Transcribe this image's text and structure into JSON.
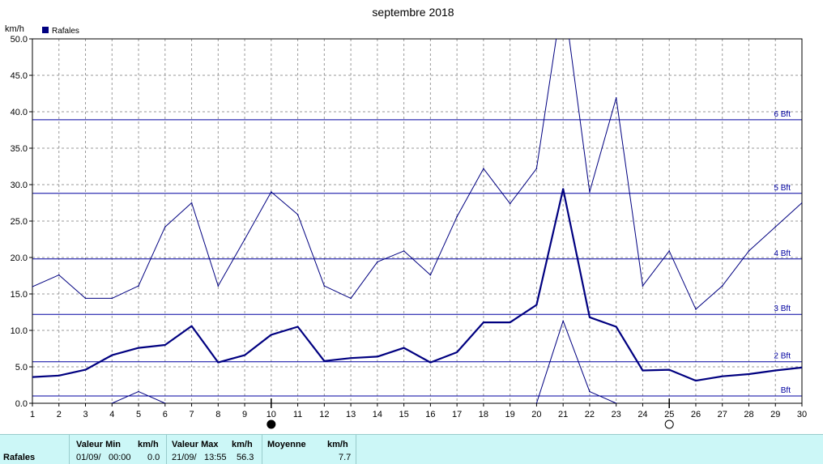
{
  "chart_data": {
    "type": "line",
    "title": "septembre 2018",
    "ylabel": "km/h",
    "ylim": [
      0,
      50
    ],
    "yticks": [
      "0.0",
      "5.0",
      "10.0",
      "15.0",
      "20.0",
      "25.0",
      "30.0",
      "35.0",
      "40.0",
      "45.0",
      "50.0"
    ],
    "x": [
      1,
      2,
      3,
      4,
      5,
      6,
      7,
      8,
      9,
      10,
      11,
      12,
      13,
      14,
      15,
      16,
      17,
      18,
      19,
      20,
      21,
      22,
      23,
      24,
      25,
      26,
      27,
      28,
      29,
      30
    ],
    "legend": [
      "Rafales"
    ],
    "legend_color": "#000080",
    "series": [
      {
        "name": "Rafales",
        "style": "mean",
        "values": [
          3.6,
          3.8,
          4.6,
          6.6,
          7.6,
          8.0,
          10.6,
          5.6,
          6.6,
          9.4,
          10.5,
          5.8,
          6.2,
          6.4,
          7.6,
          5.6,
          7.0,
          11.1,
          11.1,
          13.5,
          29.4,
          11.8,
          10.5,
          4.5,
          4.6,
          3.1,
          3.7,
          4.0,
          4.5,
          4.9
        ]
      },
      {
        "style": "max",
        "values": [
          16.0,
          17.6,
          14.4,
          14.4,
          16.1,
          24.2,
          27.5,
          16.1,
          22.5,
          29.0,
          25.9,
          16.1,
          14.4,
          19.4,
          20.9,
          17.6,
          25.6,
          32.2,
          27.4,
          32.2,
          56.3,
          29.0,
          41.9,
          16.1,
          20.9,
          12.9,
          16.1,
          20.9,
          24.2,
          27.5
        ]
      },
      {
        "style": "min",
        "values": [
          null,
          null,
          null,
          0.0,
          1.6,
          0.0,
          null,
          null,
          null,
          null,
          null,
          null,
          null,
          null,
          null,
          null,
          null,
          null,
          null,
          0.0,
          11.3,
          1.6,
          0.0,
          null,
          null,
          null,
          null,
          null,
          null,
          null
        ]
      }
    ],
    "beaufort": [
      {
        "label": "Bft",
        "value": 1.0
      },
      {
        "label": "2 Bft",
        "value": 5.7
      },
      {
        "label": "3 Bft",
        "value": 12.2
      },
      {
        "label": "4 Bft",
        "value": 19.8
      },
      {
        "label": "5 Bft",
        "value": 28.8
      },
      {
        "label": "6 Bft",
        "value": 38.9
      }
    ],
    "moon": [
      {
        "day": 10,
        "phase": "new"
      },
      {
        "day": 25,
        "phase": "full"
      }
    ],
    "grid": true,
    "line_color": "#000080",
    "bft_color": "#0000a0"
  },
  "footer": {
    "row_label": "Rafales",
    "min": {
      "header": "Valeur Min",
      "unit": "km/h",
      "date": "01/09/",
      "time": "00:00",
      "value": "0.0"
    },
    "max": {
      "header": "Valeur Max",
      "unit": "km/h",
      "date": "21/09/",
      "time": "13:55",
      "value": "56.3"
    },
    "avg": {
      "header": "Moyenne",
      "unit": "km/h",
      "value": "7.7"
    }
  }
}
